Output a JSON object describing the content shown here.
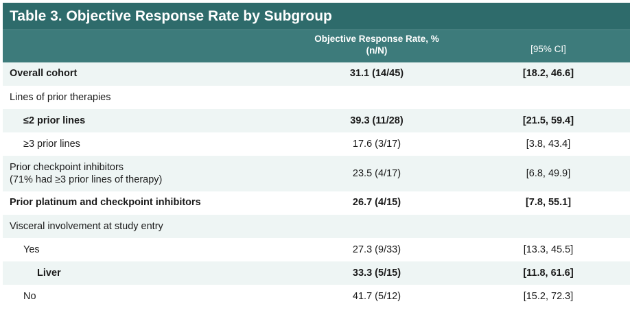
{
  "table": {
    "title": "Table 3. Objective Response Rate by Subgroup",
    "header": {
      "orr_line1": "Objective Response Rate, %",
      "orr_line2": "(n/N)",
      "ci": "[95% CI]"
    },
    "rows": [
      {
        "label": "Overall cohort",
        "orr": "31.1 (14/45)",
        "ci": "[18.2, 46.6]"
      },
      {
        "label": "Lines of prior therapies",
        "orr": "",
        "ci": ""
      },
      {
        "label": "≤2 prior lines",
        "orr": "39.3 (11/28)",
        "ci": "[21.5, 59.4]"
      },
      {
        "label": "≥3 prior lines",
        "orr": "17.6 (3/17)",
        "ci": "[3.8, 43.4]"
      },
      {
        "label": "Prior checkpoint inhibitors",
        "label2": "(71% had ≥3 prior lines of therapy)",
        "orr": "23.5 (4/17)",
        "ci": "[6.8, 49.9]"
      },
      {
        "label": "Prior platinum and checkpoint inhibitors",
        "orr": "26.7 (4/15)",
        "ci": "[7.8, 55.1]"
      },
      {
        "label": "Visceral involvement at study entry",
        "orr": "",
        "ci": ""
      },
      {
        "label": "Yes",
        "orr": "27.3 (9/33)",
        "ci": "[13.3, 45.5]"
      },
      {
        "label": "Liver",
        "orr": "33.3 (5/15)",
        "ci": "[11.8, 61.6]"
      },
      {
        "label": "No",
        "orr": "41.7 (5/12)",
        "ci": "[15.2, 72.3]"
      }
    ]
  },
  "colors": {
    "title_bg": "#2e6b6b",
    "header_bg": "#3d7b7b",
    "shade": "#eef5f4"
  }
}
